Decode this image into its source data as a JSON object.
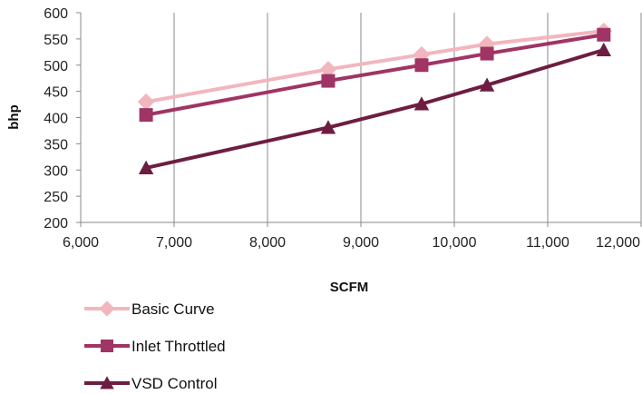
{
  "chart_data": {
    "type": "line",
    "xlabel": "SCFM",
    "ylabel": "bhp",
    "xlim": [
      6000,
      12000
    ],
    "ylim": [
      200,
      600
    ],
    "xticks": [
      6000,
      7000,
      8000,
      9000,
      10000,
      11000,
      12000
    ],
    "xtick_labels": [
      "6,000",
      "7,000",
      "8,000",
      "9,000",
      "10,000",
      "11,000",
      "12,000"
    ],
    "yticks": [
      200,
      250,
      300,
      350,
      400,
      450,
      500,
      550,
      600
    ],
    "ytick_labels": [
      "200",
      "250",
      "300",
      "350",
      "400",
      "450",
      "500",
      "550",
      "600"
    ],
    "grid": "vertical",
    "legend": "bottom-left",
    "series": [
      {
        "name": "Basic Curve",
        "color": "#f2b6be",
        "marker": "diamond",
        "x": [
          6700,
          8650,
          9650,
          10350,
          11600
        ],
        "y": [
          430,
          492,
          520,
          540,
          565
        ]
      },
      {
        "name": "Inlet Throttled",
        "color": "#a03465",
        "marker": "square",
        "x": [
          6700,
          8650,
          9650,
          10350,
          11600
        ],
        "y": [
          405,
          470,
          500,
          522,
          558
        ]
      },
      {
        "name": "VSD Control",
        "color": "#6d1d42",
        "marker": "triangle",
        "x": [
          6700,
          8650,
          9650,
          10350,
          11600
        ],
        "y": [
          304,
          381,
          426,
          462,
          529
        ]
      }
    ]
  }
}
